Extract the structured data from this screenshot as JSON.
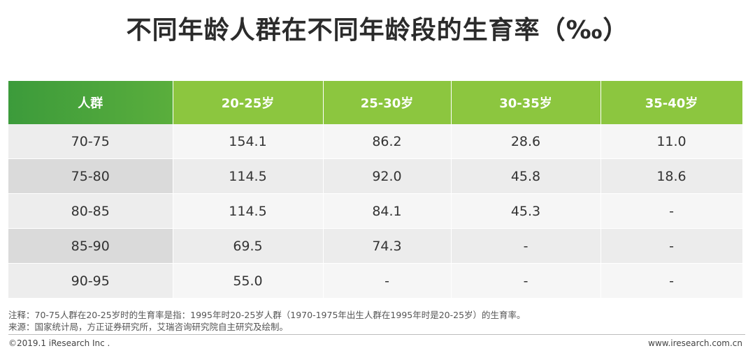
{
  "title": "不同年龄人群在不同年龄段的生育率（‰）",
  "chart_data": {
    "type": "table",
    "title": "不同年龄人群在不同年龄段的生育率（‰）",
    "columns": [
      "人群",
      "20-25岁",
      "25-30岁",
      "30-35岁",
      "35-40岁"
    ],
    "rows": [
      [
        "70-75",
        "154.1",
        "86.2",
        "28.6",
        "11.0"
      ],
      [
        "75-80",
        "114.5",
        "92.0",
        "45.8",
        "18.6"
      ],
      [
        "80-85",
        "114.5",
        "84.1",
        "45.3",
        "-"
      ],
      [
        "85-90",
        "69.5",
        "74.3",
        "-",
        "-"
      ],
      [
        "90-95",
        "55.0",
        "-",
        "-",
        "-"
      ]
    ]
  },
  "notes": {
    "note1": "注释：70-75人群在20-25岁时的生育率是指：1995年时20-25岁人群（1970-1975年出生人群在1995年时是20-25岁）的生育率。",
    "note2": "来源：国家统计局，方正证券研究所，艾瑞咨询研究院自主研究及绘制。"
  },
  "footer": {
    "copyright": "©2019.1 iResearch Inc .",
    "website": "www.iresearch.com.cn"
  },
  "colors": {
    "header_green": "#8cc63f",
    "header_dark_green": "#3a9a3a"
  }
}
